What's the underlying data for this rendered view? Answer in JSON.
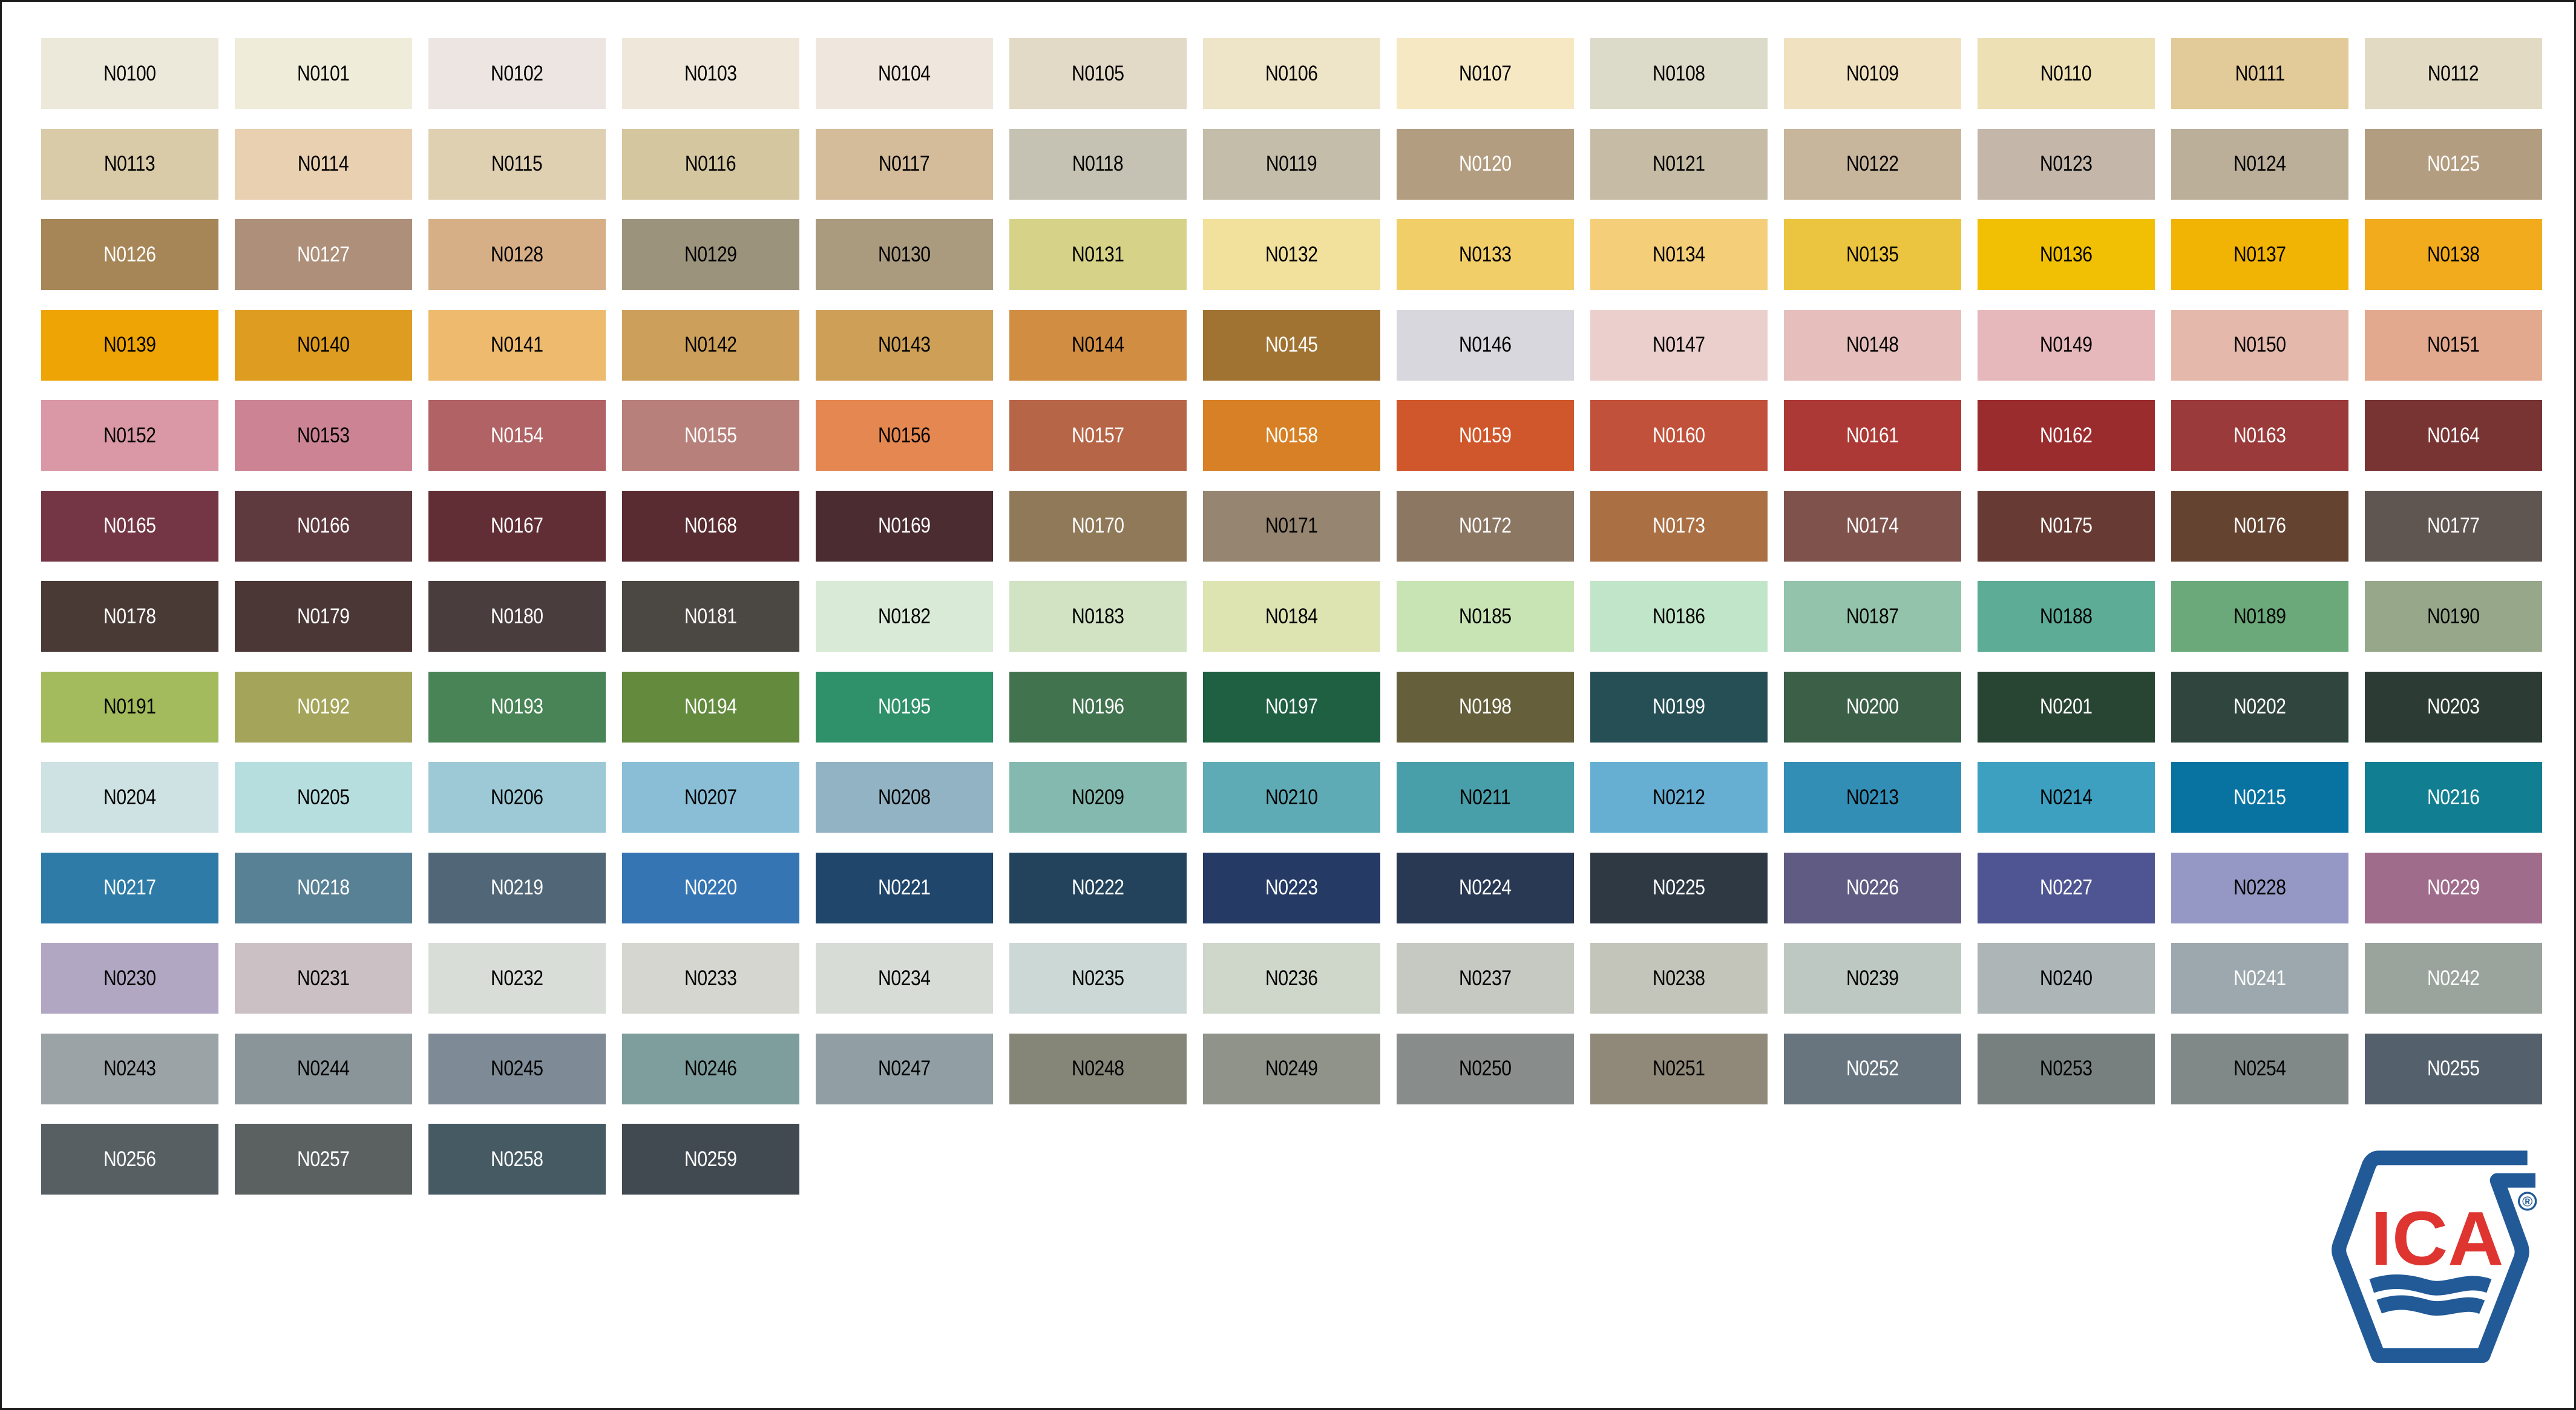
{
  "brand": {
    "logo_text": "ICA",
    "registered_mark": "®",
    "blue": "#225A97",
    "red": "#DF3530"
  },
  "swatches": [
    {
      "code": "N0100",
      "color": "#ECE9DA",
      "text": "#000000"
    },
    {
      "code": "N0101",
      "color": "#EFEDDA",
      "text": "#000000"
    },
    {
      "code": "N0102",
      "color": "#ECE5E1",
      "text": "#000000"
    },
    {
      "code": "N0103",
      "color": "#EFE8DA",
      "text": "#000000"
    },
    {
      "code": "N0104",
      "color": "#EFE7DE",
      "text": "#000000"
    },
    {
      "code": "N0105",
      "color": "#E2D9C6",
      "text": "#000000"
    },
    {
      "code": "N0106",
      "color": "#EEE4C7",
      "text": "#000000"
    },
    {
      "code": "N0107",
      "color": "#F6E8C3",
      "text": "#000000"
    },
    {
      "code": "N0108",
      "color": "#DCDAC8",
      "text": "#000000"
    },
    {
      "code": "N0109",
      "color": "#F0E2C0",
      "text": "#000000"
    },
    {
      "code": "N0110",
      "color": "#EDE0B4",
      "text": "#000000"
    },
    {
      "code": "N0111",
      "color": "#E2CB98",
      "text": "#000000"
    },
    {
      "code": "N0112",
      "color": "#E2DAC2",
      "text": "#000000"
    },
    {
      "code": "N0113",
      "color": "#D9CAA8",
      "text": "#000000"
    },
    {
      "code": "N0114",
      "color": "#E8D0B1",
      "text": "#000000"
    },
    {
      "code": "N0115",
      "color": "#E0D0B2",
      "text": "#000000"
    },
    {
      "code": "N0116",
      "color": "#D4C69F",
      "text": "#000000"
    },
    {
      "code": "N0117",
      "color": "#D4BB99",
      "text": "#000000"
    },
    {
      "code": "N0118",
      "color": "#C5C2B3",
      "text": "#000000"
    },
    {
      "code": "N0119",
      "color": "#C3BDA9",
      "text": "#000000"
    },
    {
      "code": "N0120",
      "color": "#B39D80",
      "text": "#FFFFFF"
    },
    {
      "code": "N0121",
      "color": "#C6BCA5",
      "text": "#000000"
    },
    {
      "code": "N0122",
      "color": "#C8B69C",
      "text": "#000000"
    },
    {
      "code": "N0123",
      "color": "#C4B7AA",
      "text": "#000000"
    },
    {
      "code": "N0124",
      "color": "#BBAF9A",
      "text": "#000000"
    },
    {
      "code": "N0125",
      "color": "#B39D80",
      "text": "#FFFFFF"
    },
    {
      "code": "N0126",
      "color": "#A68557",
      "text": "#FFFFFF"
    },
    {
      "code": "N0127",
      "color": "#AD8F7A",
      "text": "#FFFFFF"
    },
    {
      "code": "N0128",
      "color": "#D6AF86",
      "text": "#000000"
    },
    {
      "code": "N0129",
      "color": "#9C937C",
      "text": "#000000"
    },
    {
      "code": "N0130",
      "color": "#AA9A7E",
      "text": "#000000"
    },
    {
      "code": "N0131",
      "color": "#D6D388",
      "text": "#000000"
    },
    {
      "code": "N0132",
      "color": "#F1E19C",
      "text": "#000000"
    },
    {
      "code": "N0133",
      "color": "#F2CE68",
      "text": "#000000"
    },
    {
      "code": "N0134",
      "color": "#F4CE79",
      "text": "#000000"
    },
    {
      "code": "N0135",
      "color": "#EBC53F",
      "text": "#000000"
    },
    {
      "code": "N0136",
      "color": "#F1C004",
      "text": "#000000"
    },
    {
      "code": "N0137",
      "color": "#F1B304",
      "text": "#000000"
    },
    {
      "code": "N0138",
      "color": "#F1AB1D",
      "text": "#000000"
    },
    {
      "code": "N0139",
      "color": "#EEA404",
      "text": "#000000"
    },
    {
      "code": "N0140",
      "color": "#DE9D21",
      "text": "#000000"
    },
    {
      "code": "N0141",
      "color": "#EDBA6E",
      "text": "#000000"
    },
    {
      "code": "N0142",
      "color": "#CCA05A",
      "text": "#000000"
    },
    {
      "code": "N0143",
      "color": "#CE9F57",
      "text": "#000000"
    },
    {
      "code": "N0144",
      "color": "#D18D42",
      "text": "#000000"
    },
    {
      "code": "N0145",
      "color": "#A07332",
      "text": "#FFFFFF"
    },
    {
      "code": "N0146",
      "color": "#D8D7DD",
      "text": "#000000"
    },
    {
      "code": "N0147",
      "color": "#EBCFCD",
      "text": "#000000"
    },
    {
      "code": "N0148",
      "color": "#E6BFBC",
      "text": "#000000"
    },
    {
      "code": "N0149",
      "color": "#E7B8BB",
      "text": "#000000"
    },
    {
      "code": "N0150",
      "color": "#E4B9AB",
      "text": "#000000"
    },
    {
      "code": "N0151",
      "color": "#E2A98E",
      "text": "#000000"
    },
    {
      "code": "N0152",
      "color": "#DA97A5",
      "text": "#000000"
    },
    {
      "code": "N0153",
      "color": "#CC8495",
      "text": "#000000"
    },
    {
      "code": "N0154",
      "color": "#B06264",
      "text": "#FFFFFF"
    },
    {
      "code": "N0155",
      "color": "#B7807B",
      "text": "#FFFFFF"
    },
    {
      "code": "N0156",
      "color": "#E48750",
      "text": "#000000"
    },
    {
      "code": "N0157",
      "color": "#B76547",
      "text": "#FFFFFF"
    },
    {
      "code": "N0158",
      "color": "#D88025",
      "text": "#FFFFFF"
    },
    {
      "code": "N0159",
      "color": "#D0572B",
      "text": "#FFFFFF"
    },
    {
      "code": "N0160",
      "color": "#C1513A",
      "text": "#FFFFFF"
    },
    {
      "code": "N0161",
      "color": "#AC3935",
      "text": "#FFFFFF"
    },
    {
      "code": "N0162",
      "color": "#9B2C2D",
      "text": "#FFFFFF"
    },
    {
      "code": "N0163",
      "color": "#9A3A3A",
      "text": "#FFFFFF"
    },
    {
      "code": "N0164",
      "color": "#773433",
      "text": "#FFFFFF"
    },
    {
      "code": "N0165",
      "color": "#743644",
      "text": "#FFFFFF"
    },
    {
      "code": "N0166",
      "color": "#5E393E",
      "text": "#FFFFFF"
    },
    {
      "code": "N0167",
      "color": "#622E35",
      "text": "#FFFFFF"
    },
    {
      "code": "N0168",
      "color": "#582C30",
      "text": "#FFFFFF"
    },
    {
      "code": "N0169",
      "color": "#4A2C31",
      "text": "#FFFFFF"
    },
    {
      "code": "N0170",
      "color": "#8F7959",
      "text": "#FFFFFF"
    },
    {
      "code": "N0171",
      "color": "#968570",
      "text": "#000000"
    },
    {
      "code": "N0172",
      "color": "#8C7763",
      "text": "#FFFFFF"
    },
    {
      "code": "N0173",
      "color": "#AB6F44",
      "text": "#FFFFFF"
    },
    {
      "code": "N0174",
      "color": "#7F534C",
      "text": "#FFFFFF"
    },
    {
      "code": "N0175",
      "color": "#673A33",
      "text": "#FFFFFF"
    },
    {
      "code": "N0176",
      "color": "#644331",
      "text": "#FFFFFF"
    },
    {
      "code": "N0177",
      "color": "#5F5551",
      "text": "#FFFFFF"
    },
    {
      "code": "N0178",
      "color": "#4A3A36",
      "text": "#FFFFFF"
    },
    {
      "code": "N0179",
      "color": "#4B3836",
      "text": "#FFFFFF"
    },
    {
      "code": "N0180",
      "color": "#4A3D3D",
      "text": "#FFFFFF"
    },
    {
      "code": "N0181",
      "color": "#4B4743",
      "text": "#FFFFFF"
    },
    {
      "code": "N0182",
      "color": "#D9EBD6",
      "text": "#000000"
    },
    {
      "code": "N0183",
      "color": "#D1E3C2",
      "text": "#000000"
    },
    {
      "code": "N0184",
      "color": "#DDE4B2",
      "text": "#000000"
    },
    {
      "code": "N0185",
      "color": "#C8E4B4",
      "text": "#000000"
    },
    {
      "code": "N0186",
      "color": "#C1E5C8",
      "text": "#000000"
    },
    {
      "code": "N0187",
      "color": "#93C3AA",
      "text": "#000000"
    },
    {
      "code": "N0188",
      "color": "#5DAC95",
      "text": "#000000"
    },
    {
      "code": "N0189",
      "color": "#6BA97B",
      "text": "#000000"
    },
    {
      "code": "N0190",
      "color": "#97A78A",
      "text": "#000000"
    },
    {
      "code": "N0191",
      "color": "#A3BB5C",
      "text": "#000000"
    },
    {
      "code": "N0192",
      "color": "#A4A55A",
      "text": "#FFFFFF"
    },
    {
      "code": "N0193",
      "color": "#488455",
      "text": "#FFFFFF"
    },
    {
      "code": "N0194",
      "color": "#638A3D",
      "text": "#FFFFFF"
    },
    {
      "code": "N0195",
      "color": "#2F9169",
      "text": "#FFFFFF"
    },
    {
      "code": "N0196",
      "color": "#41734F",
      "text": "#FFFFFF"
    },
    {
      "code": "N0197",
      "color": "#1E6041",
      "text": "#FFFFFF"
    },
    {
      "code": "N0198",
      "color": "#655F3B",
      "text": "#FFFFFF"
    },
    {
      "code": "N0199",
      "color": "#254F54",
      "text": "#FFFFFF"
    },
    {
      "code": "N0200",
      "color": "#3C5F48",
      "text": "#FFFFFF"
    },
    {
      "code": "N0201",
      "color": "#284533",
      "text": "#FFFFFF"
    },
    {
      "code": "N0202",
      "color": "#30453E",
      "text": "#FFFFFF"
    },
    {
      "code": "N0203",
      "color": "#2C3B34",
      "text": "#FFFFFF"
    },
    {
      "code": "N0204",
      "color": "#CEE1E3",
      "text": "#000000"
    },
    {
      "code": "N0205",
      "color": "#B7DEDF",
      "text": "#000000"
    },
    {
      "code": "N0206",
      "color": "#9CC9D5",
      "text": "#000000"
    },
    {
      "code": "N0207",
      "color": "#89BED6",
      "text": "#000000"
    },
    {
      "code": "N0208",
      "color": "#92B3C3",
      "text": "#000000"
    },
    {
      "code": "N0209",
      "color": "#84B9AF",
      "text": "#000000"
    },
    {
      "code": "N0210",
      "color": "#5EABB5",
      "text": "#000000"
    },
    {
      "code": "N0211",
      "color": "#489EA9",
      "text": "#000000"
    },
    {
      "code": "N0212",
      "color": "#66AFD3",
      "text": "#000000"
    },
    {
      "code": "N0213",
      "color": "#338EB6",
      "text": "#000000"
    },
    {
      "code": "N0214",
      "color": "#3DA0C1",
      "text": "#000000"
    },
    {
      "code": "N0215",
      "color": "#0872A0",
      "text": "#FFFFFF"
    },
    {
      "code": "N0216",
      "color": "#127E91",
      "text": "#FFFFFF"
    },
    {
      "code": "N0217",
      "color": "#2E7BA7",
      "text": "#FFFFFF"
    },
    {
      "code": "N0218",
      "color": "#598196",
      "text": "#FFFFFF"
    },
    {
      "code": "N0219",
      "color": "#516777",
      "text": "#FFFFFF"
    },
    {
      "code": "N0220",
      "color": "#3675B3",
      "text": "#FFFFFF"
    },
    {
      "code": "N0221",
      "color": "#21466C",
      "text": "#FFFFFF"
    },
    {
      "code": "N0222",
      "color": "#22435B",
      "text": "#FFFFFF"
    },
    {
      "code": "N0223",
      "color": "#253B65",
      "text": "#FFFFFF"
    },
    {
      "code": "N0224",
      "color": "#293853",
      "text": "#FFFFFF"
    },
    {
      "code": "N0225",
      "color": "#2F3944",
      "text": "#FFFFFF"
    },
    {
      "code": "N0226",
      "color": "#5F5B83",
      "text": "#FFFFFF"
    },
    {
      "code": "N0227",
      "color": "#4F5592",
      "text": "#FFFFFF"
    },
    {
      "code": "N0228",
      "color": "#9598C4",
      "text": "#000000"
    },
    {
      "code": "N0229",
      "color": "#A06C8C",
      "text": "#FFFFFF"
    },
    {
      "code": "N0230",
      "color": "#B1A7C2",
      "text": "#000000"
    },
    {
      "code": "N0231",
      "color": "#CBC1C5",
      "text": "#000000"
    },
    {
      "code": "N0232",
      "color": "#D9DDD7",
      "text": "#000000"
    },
    {
      "code": "N0233",
      "color": "#D6D6D1",
      "text": "#000000"
    },
    {
      "code": "N0234",
      "color": "#D8DCD6",
      "text": "#000000"
    },
    {
      "code": "N0235",
      "color": "#CCD8D5",
      "text": "#000000"
    },
    {
      "code": "N0236",
      "color": "#CFD6CA",
      "text": "#000000"
    },
    {
      "code": "N0237",
      "color": "#C6C8C2",
      "text": "#000000"
    },
    {
      "code": "N0238",
      "color": "#C3C4BA",
      "text": "#000000"
    },
    {
      "code": "N0239",
      "color": "#BEC8C3",
      "text": "#000000"
    },
    {
      "code": "N0240",
      "color": "#ADB5B6",
      "text": "#000000"
    },
    {
      "code": "N0241",
      "color": "#9CA8AD",
      "text": "#FFFFFF"
    },
    {
      "code": "N0242",
      "color": "#9AA39C",
      "text": "#FFFFFF"
    },
    {
      "code": "N0243",
      "color": "#9CA3A7",
      "text": "#000000"
    },
    {
      "code": "N0244",
      "color": "#8A959A",
      "text": "#000000"
    },
    {
      "code": "N0245",
      "color": "#7E8A95",
      "text": "#000000"
    },
    {
      "code": "N0246",
      "color": "#7D9E9C",
      "text": "#000000"
    },
    {
      "code": "N0247",
      "color": "#919FA4",
      "text": "#000000"
    },
    {
      "code": "N0248",
      "color": "#868678",
      "text": "#000000"
    },
    {
      "code": "N0249",
      "color": "#90938A",
      "text": "#000000"
    },
    {
      "code": "N0250",
      "color": "#888C8A",
      "text": "#000000"
    },
    {
      "code": "N0251",
      "color": "#908979",
      "text": "#000000"
    },
    {
      "code": "N0252",
      "color": "#68757F",
      "text": "#FFFFFF"
    },
    {
      "code": "N0253",
      "color": "#777F7F",
      "text": "#000000"
    },
    {
      "code": "N0254",
      "color": "#808987",
      "text": "#000000"
    },
    {
      "code": "N0255",
      "color": "#54606B",
      "text": "#FFFFFF"
    },
    {
      "code": "N0256",
      "color": "#575F62",
      "text": "#FFFFFF"
    },
    {
      "code": "N0257",
      "color": "#5B6160",
      "text": "#FFFFFF"
    },
    {
      "code": "N0258",
      "color": "#455A63",
      "text": "#FFFFFF"
    },
    {
      "code": "N0259",
      "color": "#424A51",
      "text": "#FFFFFF"
    }
  ]
}
